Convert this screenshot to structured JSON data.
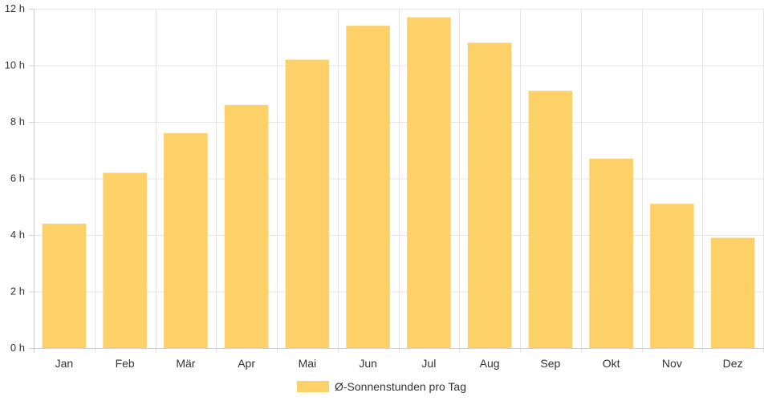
{
  "chart_data": {
    "type": "bar",
    "categories": [
      "Jan",
      "Feb",
      "Mär",
      "Apr",
      "Mai",
      "Jun",
      "Jul",
      "Aug",
      "Sep",
      "Okt",
      "Nov",
      "Dez"
    ],
    "series": [
      {
        "name": "Ø-Sonnenstunden pro Tag",
        "color": "#fdd068",
        "values": [
          4.4,
          6.2,
          7.6,
          8.6,
          10.2,
          11.4,
          11.7,
          10.8,
          9.1,
          6.7,
          5.1,
          3.9
        ]
      }
    ],
    "y_ticks": [
      "0 h",
      "2 h",
      "4 h",
      "6 h",
      "8 h",
      "10 h",
      "12 h"
    ],
    "ylim": [
      0,
      12
    ],
    "grid": true,
    "legend_position": "bottom",
    "colors": {
      "grid": "#e5e5e5",
      "axis": "#cfcfcf",
      "text": "#333333"
    }
  }
}
